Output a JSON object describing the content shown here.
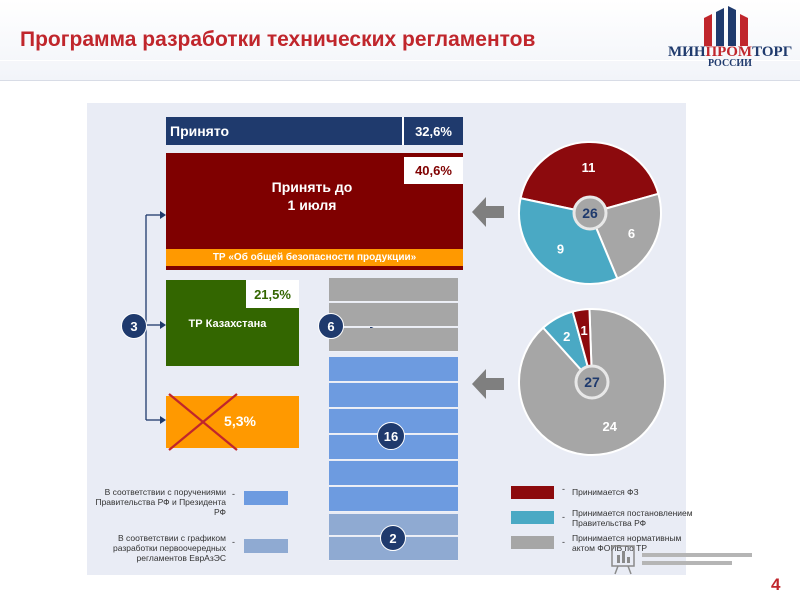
{
  "header": {
    "title": "Программа разработки технических регламентов",
    "logo_part1": "МИН",
    "logo_part2": "ПРОМ",
    "logo_part3": "ТОРГ",
    "logo_sub": "РОССИИ"
  },
  "blocks": {
    "accepted": {
      "label": "Принято",
      "percent": "32,6%"
    },
    "accept_by": {
      "label_line1": "Принять до",
      "label_line2": "1 июля",
      "percent": "40,6%"
    },
    "general_safety": {
      "label": "ТР «Об общей безопасности продукции»"
    },
    "kazakhstan": {
      "label": "ТР Казахстана",
      "percent": "21,5%"
    },
    "cancelled": {
      "percent": "5,3%"
    }
  },
  "badges": {
    "left": "3",
    "mid": "6",
    "sixteen": "16",
    "two": "2"
  },
  "pie_top": {
    "total": "26",
    "slices": [
      {
        "label": "11",
        "value": 11,
        "color": "#8c0a0d"
      },
      {
        "label": "6",
        "value": 6,
        "color": "#a6a6a6"
      },
      {
        "label": "9",
        "value": 9,
        "color": "#4aa9c4"
      }
    ]
  },
  "pie_bottom": {
    "total": "27",
    "slices": [
      {
        "label": "24",
        "value": 24,
        "color": "#a6a6a6"
      },
      {
        "label": "2",
        "value": 2,
        "color": "#4aa9c4"
      },
      {
        "label": "1",
        "value": 1,
        "color": "#8c0a0d"
      }
    ]
  },
  "legend_left": [
    {
      "text": "В соответствии с поручениями Правительства РФ и Президента РФ",
      "color": "#6d9be0"
    },
    {
      "text": "В соответствии с графиком разработки первоочередных регламентов ЕврАзЭС",
      "color": "#8faad2"
    }
  ],
  "legend_right": [
    {
      "text": "Принимается ФЗ",
      "color": "#8c0a0d"
    },
    {
      "text": "Принимается постановлением Правительства РФ",
      "color": "#4aa9c4"
    },
    {
      "text": "Принимается нормативным актом ФОИВ по ТР",
      "color": "#a6a6a6"
    }
  ],
  "dash": "-",
  "page_number": "4",
  "colors": {
    "navy": "#1f3a6d",
    "dark_red": "#7f0000",
    "orange": "#ff9900",
    "green": "#336600",
    "grey": "#a6a6a6",
    "blue": "#6d9be0"
  }
}
